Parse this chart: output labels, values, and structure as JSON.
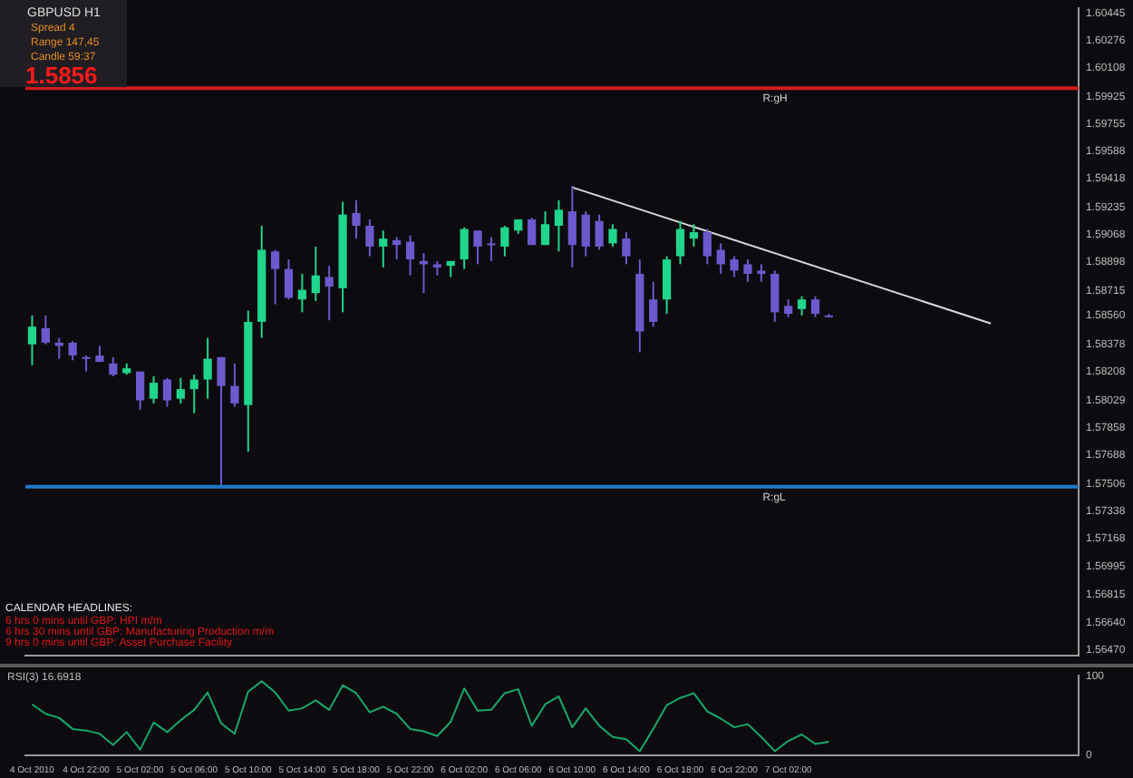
{
  "chart_data": [
    {
      "type": "candlestick",
      "categories": [
        "4 Oct 2010",
        null,
        null,
        null,
        "4 Oct 22:00",
        null,
        null,
        null,
        "5 Oct 02:00",
        null,
        null,
        null,
        "5 Oct 06:00",
        null,
        null,
        null,
        "5 Oct 10:00",
        null,
        null,
        null,
        "5 Oct 14:00",
        null,
        null,
        null,
        "5 Oct 18:00",
        null,
        null,
        null,
        "5 Oct 22:00",
        null,
        null,
        null,
        "6 Oct 02:00",
        null,
        null,
        null,
        "6 Oct 06:00",
        null,
        null,
        null,
        "6 Oct 10:00",
        null,
        null,
        null,
        "6 Oct 14:00",
        null,
        null,
        null,
        "6 Oct 18:00",
        null,
        null,
        null,
        "6 Oct 22:00",
        null,
        null,
        null,
        "7 Oct 02:00",
        null,
        null,
        null,
        null,
        null,
        null,
        null,
        null,
        null,
        null,
        null,
        null,
        null,
        null,
        null,
        null,
        null,
        null,
        null,
        null,
        null
      ],
      "ohlc": [
        [
          1.5838,
          1.5856,
          1.5825,
          1.5849
        ],
        [
          1.5848,
          1.5856,
          1.5838,
          1.5839
        ],
        [
          1.5839,
          1.5842,
          1.5829,
          1.5837
        ],
        [
          1.5839,
          1.584,
          1.5828,
          1.5831
        ],
        [
          1.583,
          1.5831,
          1.5821,
          1.583
        ],
        [
          1.5831,
          1.5837,
          1.5827,
          1.5827
        ],
        [
          1.5826,
          1.583,
          1.5818,
          1.5819
        ],
        [
          1.582,
          1.5826,
          1.5819,
          1.5823
        ],
        [
          1.5821,
          1.5821,
          1.5797,
          1.5803
        ],
        [
          1.5804,
          1.5818,
          1.5801,
          1.5814
        ],
        [
          1.5816,
          1.5817,
          1.5799,
          1.5803
        ],
        [
          1.5804,
          1.5817,
          1.5801,
          1.581
        ],
        [
          1.581,
          1.5819,
          1.5795,
          1.5816
        ],
        [
          1.5816,
          1.5842,
          1.5804,
          1.5829
        ],
        [
          1.583,
          1.583,
          1.5749,
          1.5812
        ],
        [
          1.5812,
          1.5826,
          1.5799,
          1.5801
        ],
        [
          1.58,
          1.5859,
          1.5771,
          1.5852
        ],
        [
          1.5852,
          1.5912,
          1.5842,
          1.5897
        ],
        [
          1.5896,
          1.5897,
          1.5863,
          1.5885
        ],
        [
          1.5885,
          1.5891,
          1.5866,
          1.5867
        ],
        [
          1.5866,
          1.5882,
          1.5858,
          1.5872
        ],
        [
          1.587,
          1.5899,
          1.5865,
          1.5881
        ],
        [
          1.588,
          1.5887,
          1.5853,
          1.5874
        ],
        [
          1.5873,
          1.5927,
          1.5858,
          1.5919
        ],
        [
          1.592,
          1.5928,
          1.5904,
          1.5912
        ],
        [
          1.5912,
          1.5916,
          1.5893,
          1.5899
        ],
        [
          1.5899,
          1.5909,
          1.5886,
          1.5904
        ],
        [
          1.5903,
          1.5905,
          1.5891,
          1.59
        ],
        [
          1.5902,
          1.5906,
          1.5881,
          1.5891
        ],
        [
          1.589,
          1.5895,
          1.587,
          1.5888
        ],
        [
          1.5888,
          1.589,
          1.5881,
          1.5886
        ],
        [
          1.5887,
          1.589,
          1.588,
          1.589
        ],
        [
          1.5891,
          1.5911,
          1.5885,
          1.591
        ],
        [
          1.5909,
          1.5909,
          1.5888,
          1.5899
        ],
        [
          1.5901,
          1.5905,
          1.589,
          1.5901
        ],
        [
          1.5899,
          1.5912,
          1.5893,
          1.5911
        ],
        [
          1.5909,
          1.5916,
          1.5907,
          1.5916
        ],
        [
          1.5916,
          1.5917,
          1.59,
          1.59
        ],
        [
          1.59,
          1.5921,
          1.59,
          1.5913
        ],
        [
          1.5912,
          1.5928,
          1.5896,
          1.5922
        ],
        [
          1.5921,
          1.5937,
          1.5886,
          1.59
        ],
        [
          1.5919,
          1.5921,
          1.5893,
          1.5899
        ],
        [
          1.5915,
          1.5919,
          1.5897,
          1.5899
        ],
        [
          1.5901,
          1.5913,
          1.5899,
          1.591
        ],
        [
          1.5904,
          1.5908,
          1.5888,
          1.5893
        ],
        [
          1.5882,
          1.5891,
          1.5833,
          1.5846
        ],
        [
          1.5866,
          1.5877,
          1.5849,
          1.5852
        ],
        [
          1.5866,
          1.5893,
          1.5857,
          1.5891
        ],
        [
          1.5893,
          1.5915,
          1.5888,
          1.591
        ],
        [
          1.5904,
          1.5913,
          1.5899,
          1.5908
        ],
        [
          1.5908,
          1.591,
          1.5888,
          1.5893
        ],
        [
          1.5897,
          1.5901,
          1.5882,
          1.5888
        ],
        [
          1.5891,
          1.5893,
          1.588,
          1.5884
        ],
        [
          1.5888,
          1.5891,
          1.5877,
          1.5882
        ],
        [
          1.5884,
          1.5888,
          1.5877,
          1.5882
        ],
        [
          1.5882,
          1.5884,
          1.5852,
          1.5858
        ],
        [
          1.5862,
          1.5866,
          1.5855,
          1.5857
        ],
        [
          1.586,
          1.5868,
          1.5856,
          1.5866
        ],
        [
          1.5866,
          1.5868,
          1.5855,
          1.5857
        ],
        [
          1.5856,
          1.5857,
          1.5856,
          1.5856
        ],
        null,
        null,
        null,
        null,
        null,
        null,
        null,
        null,
        null,
        null,
        null,
        null,
        null,
        null,
        null,
        null,
        null,
        null
      ],
      "colors": [
        "#20d68c",
        "#6a5acd",
        "#6a5acd",
        "#6a5acd",
        "#6a5acd",
        "#6a5acd",
        "#6a5acd",
        "#20d68c",
        "#6a5acd",
        "#20d68c",
        "#6a5acd",
        "#20d68c",
        "#20d68c",
        "#20d68c",
        "#6a5acd",
        "#6a5acd",
        "#20d68c",
        "#20d68c",
        "#6a5acd",
        "#6a5acd",
        "#20d68c",
        "#20d68c",
        "#6a5acd",
        "#20d68c",
        "#6a5acd",
        "#6a5acd",
        "#20d68c",
        "#6a5acd",
        "#6a5acd",
        "#6a5acd",
        "#6a5acd",
        "#20d68c",
        "#20d68c",
        "#6a5acd",
        "#6a5acd",
        "#20d68c",
        "#20d68c",
        "#6a5acd",
        "#20d68c",
        "#20d68c",
        "#6a5acd",
        "#6a5acd",
        "#6a5acd",
        "#20d68c",
        "#6a5acd",
        "#6a5acd",
        "#6a5acd",
        "#20d68c",
        "#20d68c",
        "#20d68c",
        "#6a5acd",
        "#6a5acd",
        "#6a5acd",
        "#6a5acd",
        "#6a5acd",
        "#6a5acd",
        "#6a5acd",
        "#20d68c",
        "#6a5acd",
        "#6a5acd",
        null,
        null,
        null,
        null,
        null,
        null,
        null,
        null,
        null,
        null,
        null,
        null,
        null,
        null,
        null,
        null,
        null,
        null
      ],
      "series": [
        {
          "type": "line",
          "color": "#d8d8d8",
          "values": [
            null,
            null,
            null,
            null,
            null,
            null,
            null,
            null,
            null,
            null,
            null,
            null,
            null,
            null,
            null,
            null,
            null,
            null,
            null,
            null,
            null,
            null,
            null,
            null,
            null,
            null,
            null,
            null,
            null,
            null,
            null,
            null,
            null,
            null,
            null,
            null,
            null,
            null,
            null,
            null,
            1.5936,
            null,
            null,
            null,
            null,
            null,
            null,
            null,
            null,
            null,
            null,
            null,
            null,
            null,
            null,
            null,
            null,
            null,
            null,
            null,
            null,
            null,
            null,
            null,
            null,
            null,
            null,
            null,
            null,
            null,
            null,
            1.5851,
            null,
            null,
            null,
            null,
            null,
            null
          ]
        }
      ],
      "ylim": [
        1.56437,
        1.60478
      ],
      "yticks": [
        1.60445,
        1.60276,
        1.60108,
        1.59925,
        1.59755,
        1.59588,
        1.59418,
        1.59235,
        1.59068,
        1.58898,
        1.58715,
        {
          "value": 1.5856,
          "label": "1.58560"
        },
        1.58378,
        1.58208,
        1.58029,
        1.57858,
        1.57688,
        1.57506,
        1.57338,
        1.57168,
        1.56995,
        1.56815,
        {
          "value": 1.5664,
          "label": "1.56640"
        },
        {
          "value": 1.5647,
          "label": "1.56470"
        }
      ],
      "ref_lines": [
        {
          "axis": "y",
          "value": 1.5998,
          "label": "R:gH",
          "color": "#d01c1c"
        },
        {
          "axis": "y",
          "value": 1.5749,
          "label": "R:gL",
          "color": "#1f78c8"
        }
      ],
      "annotations": [
        "GBPUSD  H1",
        "Spread  4",
        "Range  147,45",
        "Candle  59:37",
        "1.5856",
        "CALENDAR HEADLINES:",
        "6 hrs 0 mins until GBP: HPI m/m",
        "6 hrs 30 mins until GBP: Manufacturing Production m/m",
        "9 hrs 0 mins until GBP: Asset Purchase Facility"
      ]
    },
    {
      "type": "line",
      "title": "RSI(3) 16.6918",
      "tick_labels": "y",
      "categories": [
        null,
        null,
        null,
        null,
        null,
        null,
        null,
        null,
        null,
        null,
        null,
        null,
        null,
        null,
        null,
        null,
        null,
        null,
        null,
        null,
        null,
        null,
        null,
        null,
        null,
        null,
        null,
        null,
        null,
        null,
        null,
        null,
        null,
        null,
        null,
        null,
        null,
        null,
        null,
        null,
        null,
        null,
        null,
        null,
        null,
        null,
        null,
        null,
        null,
        null,
        null,
        null,
        null,
        null,
        null,
        null,
        null,
        null,
        null,
        null,
        null,
        null,
        null,
        null,
        null,
        null,
        null,
        null,
        null,
        null,
        null,
        null,
        null,
        null,
        null,
        null,
        null,
        null
      ],
      "series": [
        {
          "color": "#18a86b",
          "values": [
            64,
            52,
            47,
            33,
            31,
            27,
            13,
            29,
            7,
            41,
            29,
            44,
            57,
            79,
            40,
            27,
            80,
            93,
            79,
            56,
            59,
            69,
            57,
            88,
            78,
            54,
            61,
            52,
            33,
            30,
            24,
            42,
            84,
            56,
            57,
            78,
            83,
            37,
            64,
            74,
            35,
            59,
            37,
            23,
            20,
            5,
            33,
            63,
            72,
            78,
            55,
            46,
            35,
            39,
            23,
            5,
            18,
            26,
            14,
            17,
            null,
            null,
            null,
            null,
            null,
            null,
            null,
            null,
            null,
            null,
            null,
            null,
            null,
            null,
            null,
            null,
            null,
            null
          ]
        }
      ],
      "ylim": [
        0,
        100
      ],
      "yticks": [
        100,
        0
      ]
    }
  ]
}
